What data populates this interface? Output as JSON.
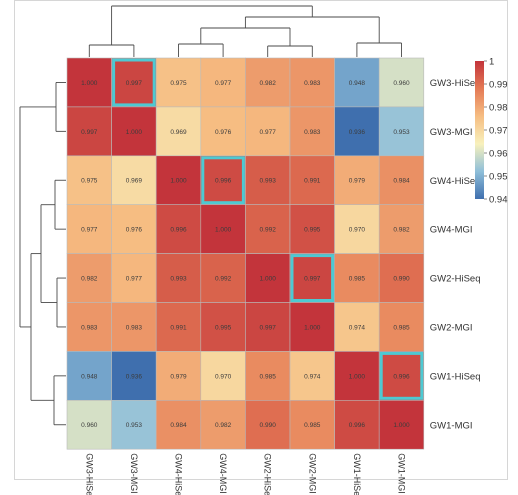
{
  "chart_data": {
    "type": "heatmap",
    "title": "",
    "rows": [
      "GW3-HiSeq",
      "GW3-MGI",
      "GW4-HiSeq",
      "GW4-MGI",
      "GW2-HiSeq",
      "GW2-MGI",
      "GW1-HiSeq",
      "GW1-MGI"
    ],
    "columns": [
      "GW3-HiSeq",
      "GW3-MGI",
      "GW4-HiSeq",
      "GW4-MGI",
      "GW2-HiSeq",
      "GW2-MGI",
      "GW1-HiSeq",
      "GW1-MGI"
    ],
    "values": [
      [
        "1.000",
        "0.997",
        "0.975",
        "0.977",
        "0.982",
        "0.983",
        "0.948",
        "0.960"
      ],
      [
        "0.997",
        "1.000",
        "0.969",
        "0.976",
        "0.977",
        "0.983",
        "0.936",
        "0.953"
      ],
      [
        "0.975",
        "0.969",
        "1.000",
        "0.996",
        "0.993",
        "0.991",
        "0.979",
        "0.984"
      ],
      [
        "0.977",
        "0.976",
        "0.996",
        "1.000",
        "0.992",
        "0.995",
        "0.970",
        "0.982"
      ],
      [
        "0.982",
        "0.977",
        "0.993",
        "0.992",
        "1.000",
        "0.997",
        "0.985",
        "0.990"
      ],
      [
        "0.983",
        "0.983",
        "0.991",
        "0.995",
        "0.997",
        "1.000",
        "0.974",
        "0.985"
      ],
      [
        "0.948",
        "0.936",
        "0.979",
        "0.970",
        "0.985",
        "0.974",
        "1.000",
        "0.996"
      ],
      [
        "0.960",
        "0.953",
        "0.984",
        "0.982",
        "0.990",
        "0.985",
        "0.996",
        "1.000"
      ]
    ],
    "highlighted_cells": [
      [
        0,
        1
      ],
      [
        2,
        3
      ],
      [
        4,
        5
      ],
      [
        6,
        7
      ]
    ],
    "highlight_color": "#4ec9d2",
    "colorbar": {
      "range": [
        0.94,
        1.0
      ],
      "tick_labels": [
        "1",
        "0.99",
        "0.98",
        "0.97",
        "0.96",
        "0.95",
        "0.94"
      ],
      "tick_values": [
        1.0,
        0.99,
        0.98,
        0.97,
        0.96,
        0.95,
        0.94
      ],
      "colors": [
        "#3f6fae",
        "#8fbfd9",
        "#f8f1bc",
        "#f6bd82",
        "#e47a55",
        "#c3343b"
      ]
    },
    "dendrogram": "top and left hierarchical clustering trees",
    "grid": false,
    "legend": "colorbar top-right"
  }
}
